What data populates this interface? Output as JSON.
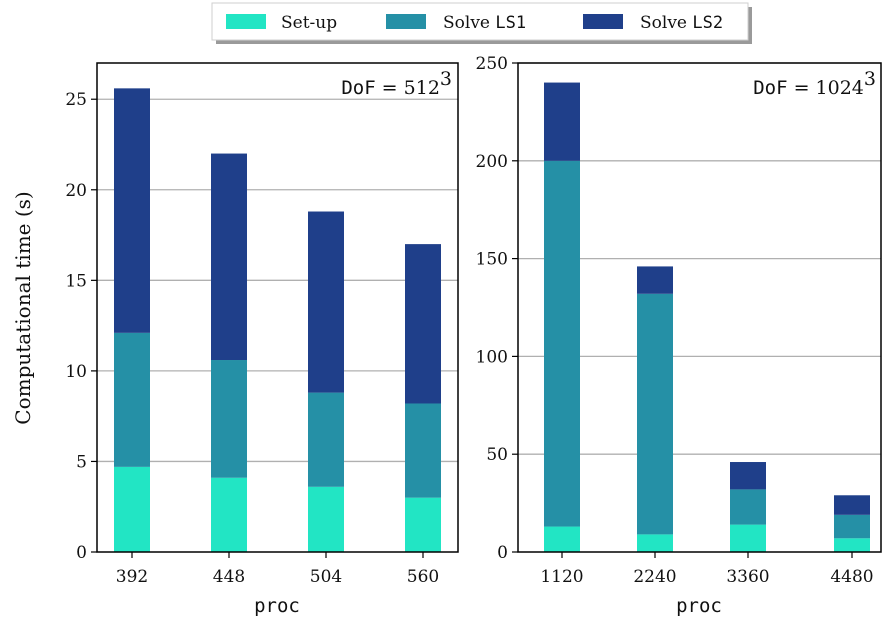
{
  "legend": {
    "items": [
      {
        "prefix": "Set-up",
        "mono": "",
        "color": "#22e5c4"
      },
      {
        "prefix": "Solve ",
        "mono": "LS1",
        "color": "#2590a6"
      },
      {
        "prefix": "Solve ",
        "mono": "LS2",
        "color": "#1f3f8a"
      }
    ]
  },
  "ylabel": "Computational time (s)",
  "chart_data": [
    {
      "type": "bar",
      "stacked": true,
      "categories": [
        "392",
        "448",
        "504",
        "560"
      ],
      "series": [
        {
          "name": "Set-up",
          "values": [
            4.7,
            4.1,
            3.6,
            3.0
          ]
        },
        {
          "name": "Solve LS1",
          "values": [
            7.4,
            6.5,
            5.2,
            5.2
          ]
        },
        {
          "name": "Solve LS2",
          "values": [
            13.5,
            11.4,
            10.0,
            8.8
          ]
        }
      ],
      "xlabel": "proc",
      "ylabel": "Computational time (s)",
      "ylim": [
        0,
        27
      ],
      "yticks": [
        0,
        5,
        10,
        15,
        20,
        25
      ],
      "grid": "horizontal",
      "annotation": {
        "mono": "DoF",
        "serif": " = 512",
        "sup": "3"
      }
    },
    {
      "type": "bar",
      "stacked": true,
      "categories": [
        "1120",
        "2240",
        "3360",
        "4480"
      ],
      "series": [
        {
          "name": "Set-up",
          "values": [
            13,
            9,
            14,
            7
          ]
        },
        {
          "name": "Solve LS1",
          "values": [
            187,
            123,
            18,
            12
          ]
        },
        {
          "name": "Solve LS2",
          "values": [
            40,
            14,
            14,
            10
          ]
        }
      ],
      "xlabel": "proc",
      "ylabel": "",
      "ylim": [
        0,
        250
      ],
      "yticks": [
        0,
        50,
        100,
        150,
        200,
        250
      ],
      "grid": "horizontal",
      "annotation": {
        "mono": "DoF",
        "serif": " = 1024",
        "sup": "3"
      }
    }
  ]
}
